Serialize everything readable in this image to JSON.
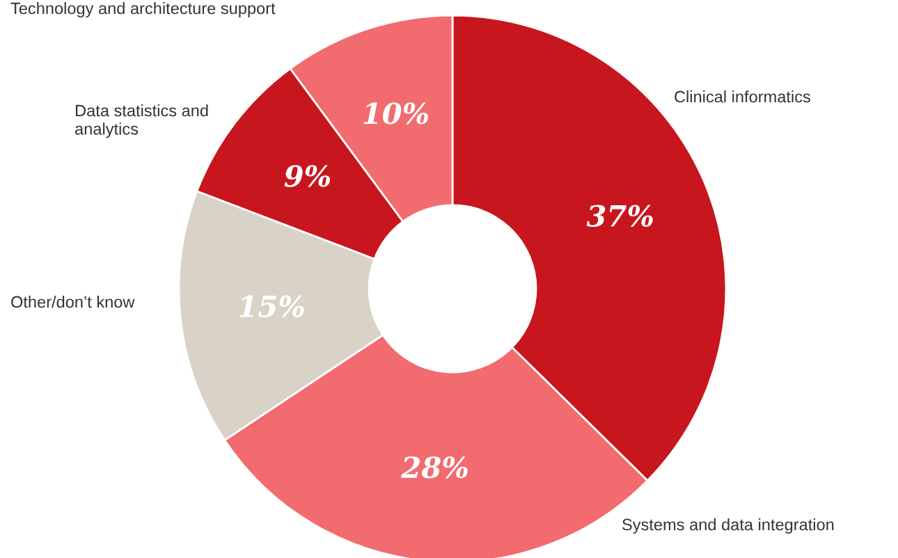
{
  "chart_data": {
    "type": "donut",
    "categories": [
      "Clinical informatics",
      "Systems and data integration",
      "Other/don’t know",
      "Data statistics and\nanalytics",
      "Technology and architecture support"
    ],
    "values": [
      37,
      28,
      15,
      9,
      10
    ],
    "colors": [
      "#c8161e",
      "#f26b6f",
      "#d9d3c7",
      "#c8161e",
      "#f26b6f"
    ],
    "value_labels": [
      "37%",
      "28%",
      "15%",
      "9%",
      "10%"
    ],
    "legend": false
  }
}
